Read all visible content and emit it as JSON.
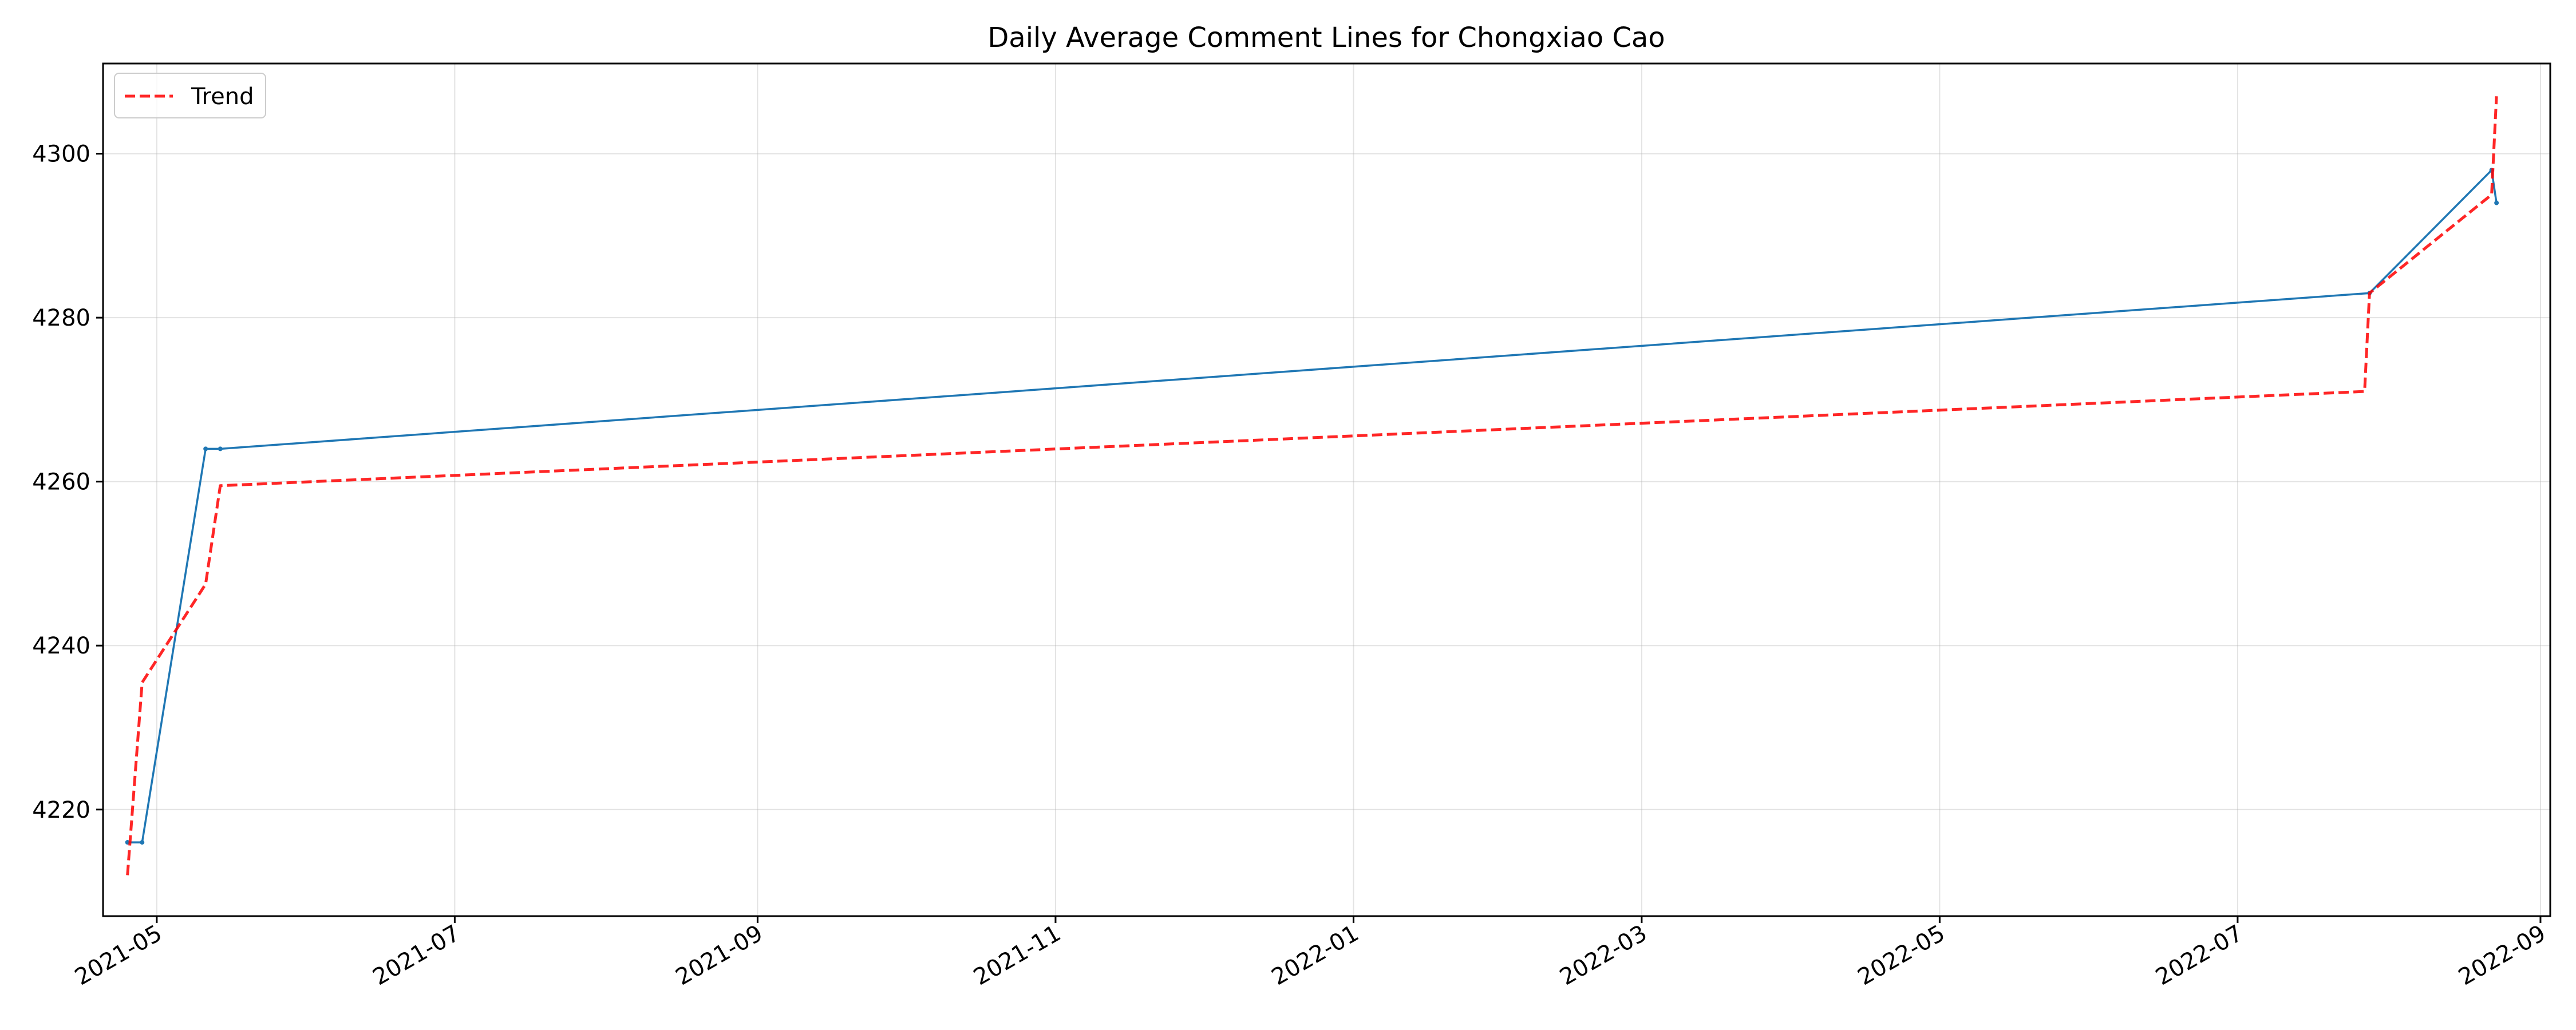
{
  "chart_data": {
    "type": "line",
    "title": "Daily Average Comment Lines for Chongxiao Cao",
    "xlabel": "",
    "ylabel": "",
    "x_is_date": true,
    "xlim": [
      "2021-04-20",
      "2022-09-03"
    ],
    "ylim": [
      4207,
      4311
    ],
    "grid": true,
    "legend": {
      "placement": "top-left",
      "entries": [
        "Trend"
      ]
    },
    "x_ticks": [
      "2021-05",
      "2021-07",
      "2021-09",
      "2021-11",
      "2022-01",
      "2022-03",
      "2022-05",
      "2022-07",
      "2022-09"
    ],
    "y_ticks": [
      4220,
      4240,
      4260,
      4280,
      4300
    ],
    "series": [
      {
        "role": "data",
        "color": "#1f77b4",
        "style": "solid",
        "marker": "point",
        "points": [
          {
            "x": "2021-04-25",
            "y": 4216
          },
          {
            "x": "2021-04-28",
            "y": 4216
          },
          {
            "x": "2021-05-11",
            "y": 4264
          },
          {
            "x": "2021-05-14",
            "y": 4264
          },
          {
            "x": "2022-07-28",
            "y": 4283
          },
          {
            "x": "2022-08-22",
            "y": 4298
          },
          {
            "x": "2022-08-23",
            "y": 4294
          }
        ]
      },
      {
        "name": "Trend",
        "role": "trend",
        "color": "#ff0000",
        "style": "dashed",
        "points": [
          {
            "x": "2021-04-25",
            "y": 4212
          },
          {
            "x": "2021-04-28",
            "y": 4235.5
          },
          {
            "x": "2021-05-11",
            "y": 4247.5
          },
          {
            "x": "2021-05-14",
            "y": 4259.5
          },
          {
            "x": "2022-07-27",
            "y": 4271
          },
          {
            "x": "2022-07-28",
            "y": 4283
          },
          {
            "x": "2022-08-22",
            "y": 4295
          },
          {
            "x": "2022-08-23",
            "y": 4307
          }
        ]
      }
    ]
  }
}
